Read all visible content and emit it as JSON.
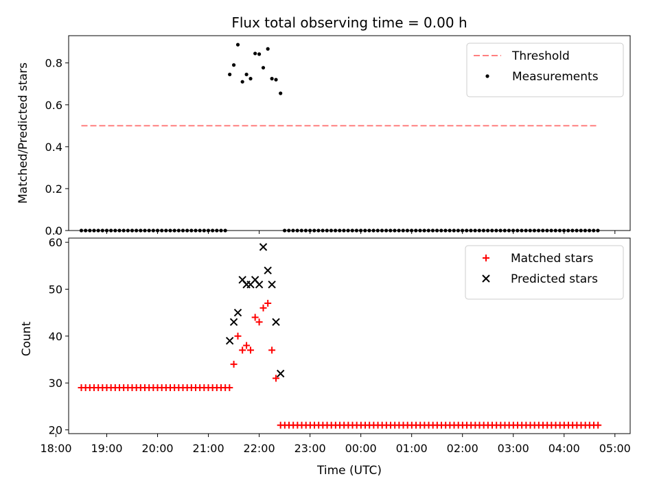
{
  "chart_data": [
    {
      "type": "scatter",
      "title": "Flux total observing time = 0.00 h",
      "xlabel": "",
      "ylabel": "Matched/Predicted stars",
      "xlim_hours": [
        18.25,
        29.3
      ],
      "ylim": [
        0,
        0.93
      ],
      "yticks": [
        "0.0",
        "0.2",
        "0.4",
        "0.6",
        "0.8"
      ],
      "ytick_values": [
        0,
        0.2,
        0.4,
        0.6,
        0.8
      ],
      "legend_position": "top-right",
      "threshold": {
        "name": "Threshold",
        "value": 0.5,
        "x_range": [
          18.5,
          28.67
        ],
        "color": "#ff7f7f"
      },
      "series": [
        {
          "name": "Measurements",
          "color": "#000000",
          "marker": "dot",
          "low_segments": [
            {
              "start": 18.5,
              "end": 21.33,
              "step": 0.0833,
              "value": 0.0
            },
            {
              "start": 22.5,
              "end": 28.67,
              "step": 0.0833,
              "value": 0.0
            }
          ],
          "points": [
            {
              "x": 21.42,
              "y": 0.745
            },
            {
              "x": 21.5,
              "y": 0.79
            },
            {
              "x": 21.58,
              "y": 0.887
            },
            {
              "x": 21.67,
              "y": 0.71
            },
            {
              "x": 21.75,
              "y": 0.745
            },
            {
              "x": 21.83,
              "y": 0.725
            },
            {
              "x": 21.92,
              "y": 0.845
            },
            {
              "x": 22.0,
              "y": 0.842
            },
            {
              "x": 22.08,
              "y": 0.777
            },
            {
              "x": 22.17,
              "y": 0.867
            },
            {
              "x": 22.25,
              "y": 0.725
            },
            {
              "x": 22.33,
              "y": 0.72
            },
            {
              "x": 22.42,
              "y": 0.655
            }
          ]
        }
      ]
    },
    {
      "type": "scatter",
      "title": "",
      "xlabel": "Time (UTC)",
      "ylabel": "Count",
      "xlim_hours": [
        18.25,
        29.3
      ],
      "ylim": [
        19.2,
        60.9
      ],
      "yticks": [
        "20",
        "30",
        "40",
        "50",
        "60"
      ],
      "ytick_values": [
        20,
        30,
        40,
        50,
        60
      ],
      "xticks": [
        "18:00",
        "19:00",
        "20:00",
        "21:00",
        "22:00",
        "23:00",
        "00:00",
        "01:00",
        "02:00",
        "03:00",
        "04:00",
        "05:00"
      ],
      "xtick_values": [
        18,
        19,
        20,
        21,
        22,
        23,
        24,
        25,
        26,
        27,
        28,
        29
      ],
      "legend_position": "top-right",
      "series": [
        {
          "name": "Matched stars",
          "color": "#ff0000",
          "marker": "plus",
          "low_segments": [
            {
              "start": 18.5,
              "end": 21.42,
              "step": 0.0833,
              "value": 29
            },
            {
              "start": 22.42,
              "end": 28.67,
              "step": 0.0833,
              "value": 21
            }
          ],
          "points": [
            {
              "x": 21.5,
              "y": 34
            },
            {
              "x": 21.58,
              "y": 40
            },
            {
              "x": 21.67,
              "y": 37
            },
            {
              "x": 21.75,
              "y": 38
            },
            {
              "x": 21.83,
              "y": 37
            },
            {
              "x": 21.92,
              "y": 44
            },
            {
              "x": 22.0,
              "y": 43
            },
            {
              "x": 22.08,
              "y": 46
            },
            {
              "x": 22.17,
              "y": 47
            },
            {
              "x": 22.25,
              "y": 37
            },
            {
              "x": 22.33,
              "y": 31
            }
          ]
        },
        {
          "name": "Predicted stars",
          "color": "#000000",
          "marker": "x",
          "points": [
            {
              "x": 21.42,
              "y": 39
            },
            {
              "x": 21.5,
              "y": 43
            },
            {
              "x": 21.58,
              "y": 45
            },
            {
              "x": 21.67,
              "y": 52
            },
            {
              "x": 21.75,
              "y": 51
            },
            {
              "x": 21.83,
              "y": 51
            },
            {
              "x": 21.92,
              "y": 52
            },
            {
              "x": 22.0,
              "y": 51
            },
            {
              "x": 22.08,
              "y": 59
            },
            {
              "x": 22.17,
              "y": 54
            },
            {
              "x": 22.25,
              "y": 51
            },
            {
              "x": 22.33,
              "y": 43
            },
            {
              "x": 22.42,
              "y": 32
            }
          ]
        }
      ]
    }
  ]
}
